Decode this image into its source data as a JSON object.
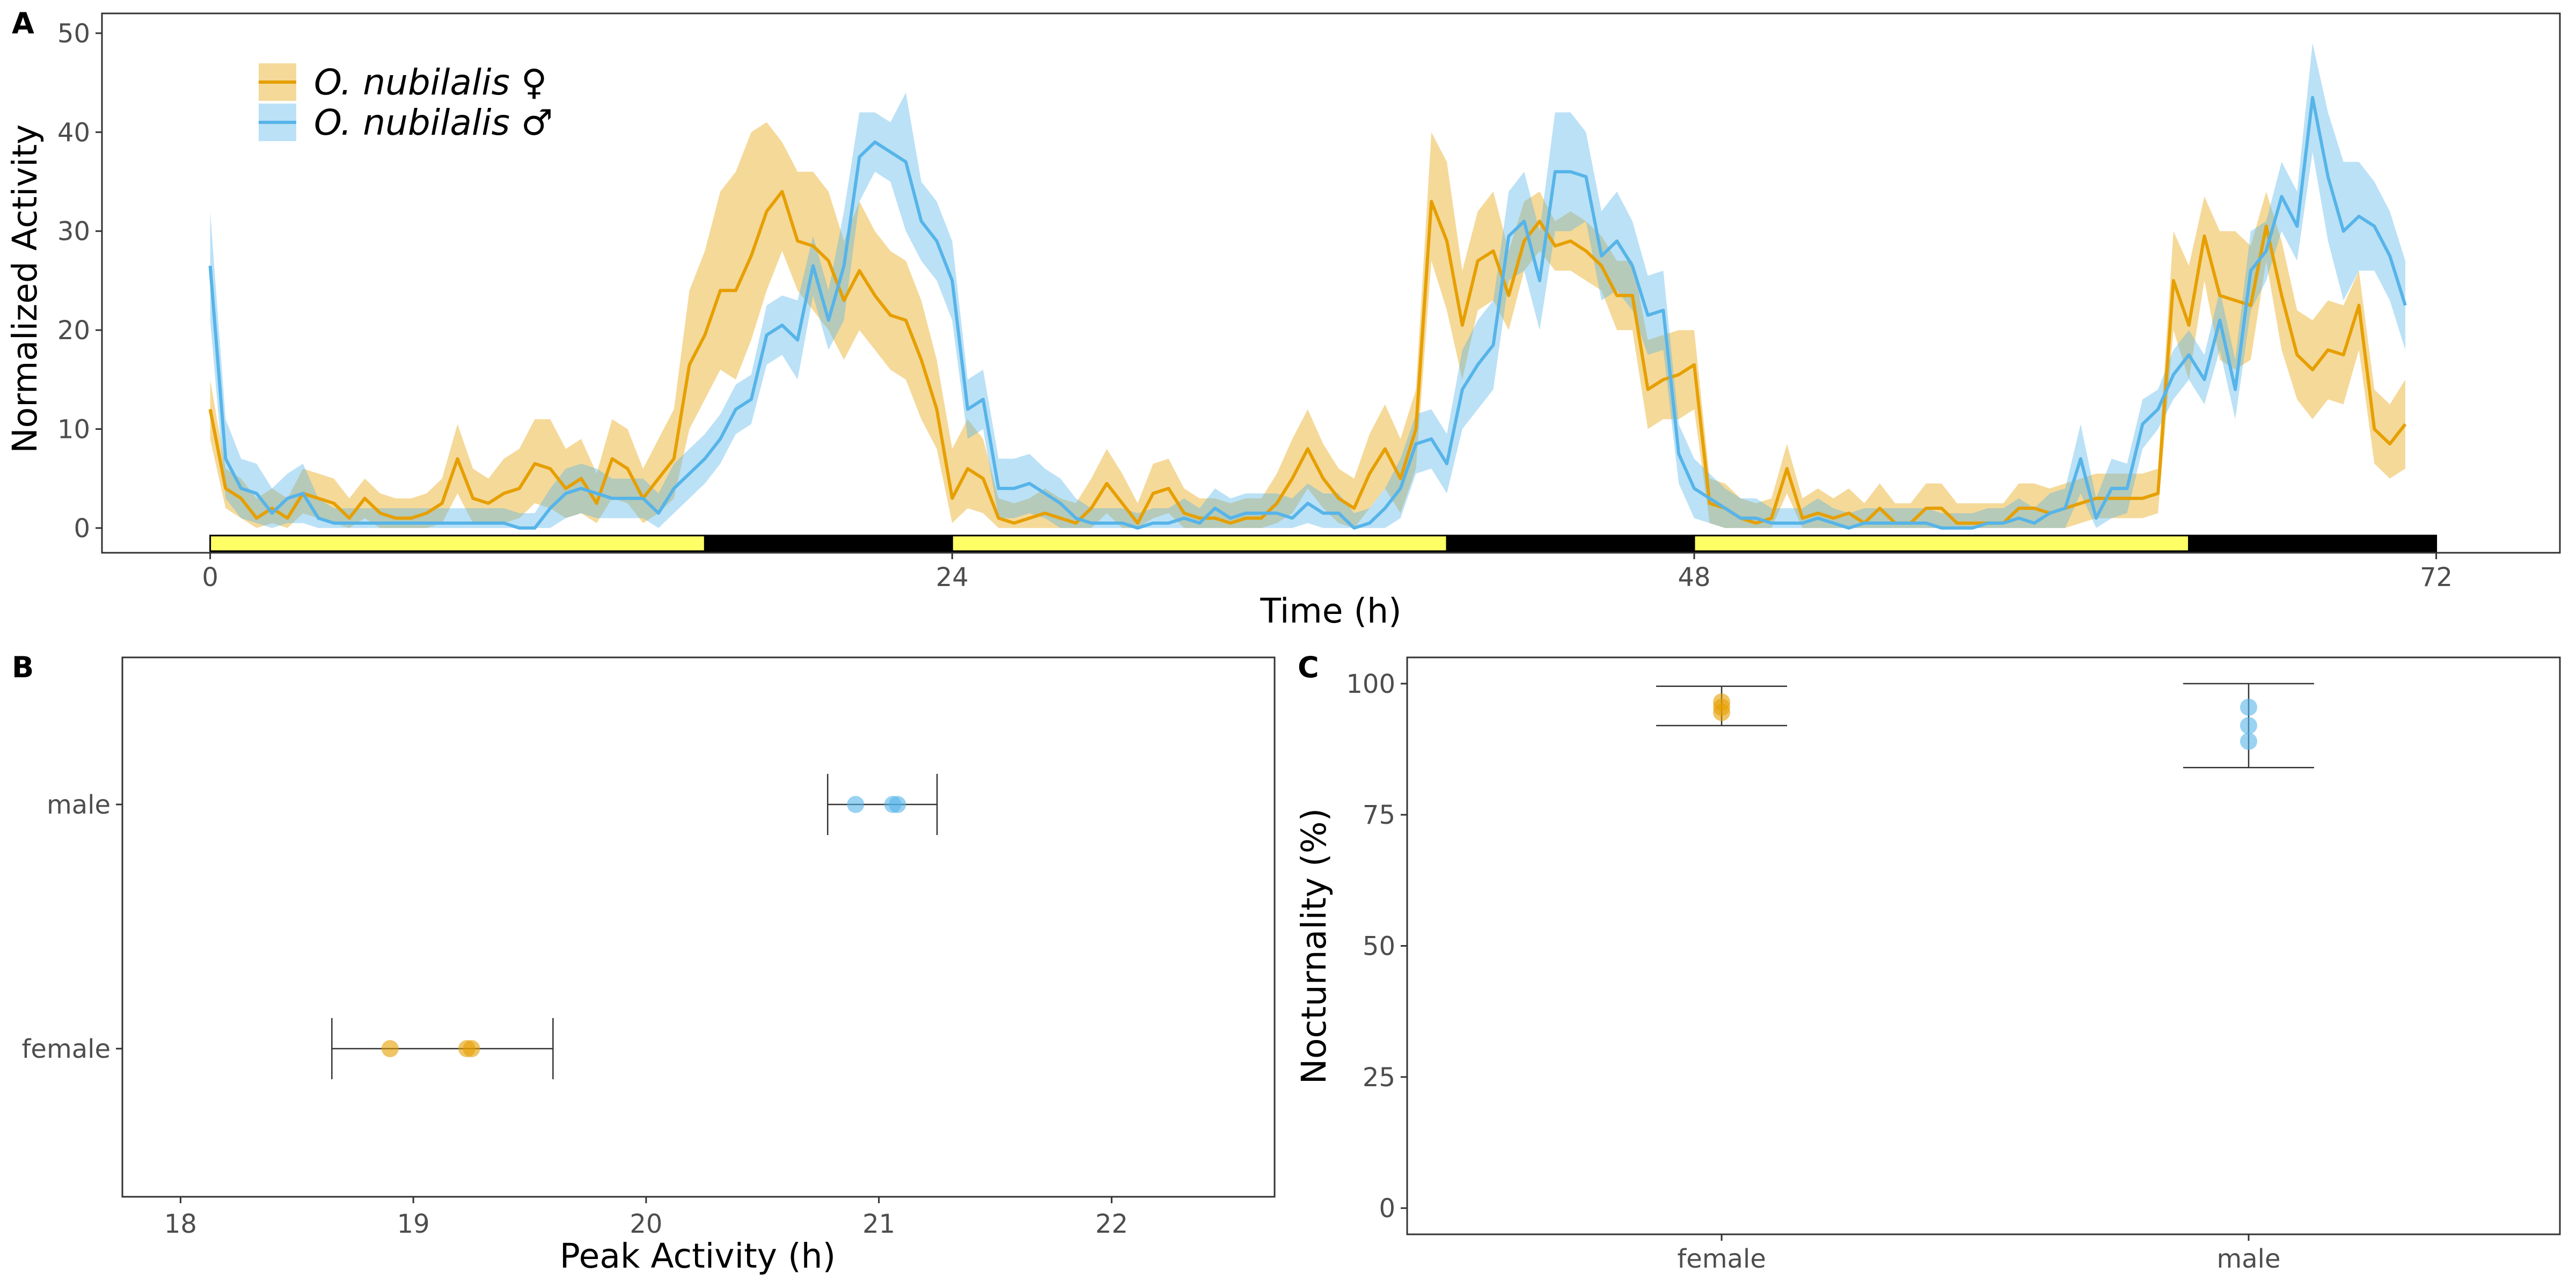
{
  "panels": {
    "a": {
      "letter": "A"
    },
    "b": {
      "letter": "B"
    },
    "c": {
      "letter": "C"
    }
  },
  "colors": {
    "female": "#E69F00",
    "male": "#56B4E9",
    "light_phase": "#FFFF66",
    "dark_phase": "#000000"
  },
  "chart_data": [
    {
      "type": "line",
      "panel": "A",
      "xlabel": "Time (h)",
      "ylabel": "Normalized Activity",
      "xlim": [
        -3.5,
        76
      ],
      "ylim": [
        -2.5,
        52
      ],
      "xticks": [
        0,
        24,
        48,
        72
      ],
      "yticks": [
        0,
        10,
        20,
        30,
        40,
        50
      ],
      "legend_position": "top-left",
      "x_step": 0.5,
      "x_start": 0,
      "series": [
        {
          "name": "O. nubilalis ♀",
          "key": "female",
          "values": [
            12,
            4,
            3,
            1,
            2,
            1,
            3.5,
            3,
            2.5,
            1,
            3,
            1.5,
            1,
            1,
            1.5,
            2.5,
            7,
            3,
            2.5,
            3.5,
            4,
            6.5,
            6,
            4,
            5,
            2.5,
            7,
            6,
            3,
            5,
            7,
            16.5,
            19.5,
            24,
            24,
            27.5,
            32,
            34,
            29,
            28.5,
            27,
            23,
            26,
            23.5,
            21.5,
            21,
            17,
            12,
            3,
            6,
            5,
            1,
            0.5,
            1,
            1.5,
            1,
            0.5,
            2,
            4.5,
            2.5,
            0.5,
            3.5,
            4,
            1.5,
            1,
            1,
            0.5,
            1,
            1,
            2.5,
            5,
            8,
            5,
            3,
            2,
            5.5,
            8,
            5,
            10,
            33,
            29,
            20.5,
            27,
            28,
            23.5,
            29,
            31,
            28.5,
            29,
            28,
            26.5,
            23.5,
            23.5,
            14,
            15,
            15.5,
            16.5,
            2.5,
            2,
            1,
            0.5,
            1,
            6,
            1,
            1.5,
            1,
            1.5,
            0.5,
            2,
            0.5,
            0.5,
            2,
            2,
            0.5,
            0.5,
            0.5,
            0.5,
            2,
            2,
            1.5,
            2,
            2.5,
            3,
            3,
            3,
            3,
            3.5,
            25,
            20.5,
            29.5,
            23.5,
            23,
            22.5,
            30.5,
            23.5,
            17.5,
            16,
            18,
            17.5,
            22.5,
            10,
            8.5,
            10.5
          ],
          "upper": [
            15,
            6,
            5,
            3,
            4,
            3,
            6,
            5.5,
            5,
            3,
            5,
            3.5,
            3,
            3,
            3.5,
            5,
            10.5,
            6,
            5,
            7,
            8,
            11,
            11,
            8,
            9,
            5.5,
            11,
            10,
            6,
            9,
            12,
            24,
            28,
            34,
            36,
            40,
            41,
            39,
            36,
            36,
            34,
            29,
            33,
            30,
            28,
            27,
            23,
            17,
            8,
            11,
            9,
            3,
            2.5,
            3,
            4,
            3,
            2.5,
            5,
            8,
            5.5,
            2.5,
            6.5,
            7,
            4,
            3,
            3,
            2.5,
            3,
            3,
            5.5,
            9,
            12,
            8.5,
            6,
            5,
            9.5,
            12.5,
            9,
            14,
            40,
            37,
            26,
            32,
            34,
            28,
            33,
            34,
            31,
            32,
            31,
            29.5,
            27,
            27,
            19,
            19.5,
            20,
            20,
            5,
            4.5,
            3,
            2.5,
            3,
            8.5,
            3,
            4,
            3,
            4,
            2.5,
            4.5,
            2.5,
            2.5,
            4.5,
            4.5,
            2.5,
            2.5,
            2.5,
            2.5,
            4.5,
            4.5,
            4,
            4.5,
            5,
            5.5,
            5.5,
            5.5,
            5.5,
            6,
            30,
            26.5,
            33.5,
            30,
            30,
            28.5,
            34,
            29,
            22,
            21,
            23,
            22.5,
            26,
            14,
            12.5,
            15
          ],
          "lower": [
            9,
            2,
            1,
            0,
            0.5,
            0,
            1.5,
            1,
            0.5,
            0,
            1,
            0,
            0,
            0,
            0,
            0.5,
            3.5,
            0.5,
            0.5,
            0.5,
            1,
            2.5,
            2,
            1,
            1.5,
            0.5,
            3,
            2.5,
            0.5,
            1.5,
            3,
            10,
            13,
            16,
            15,
            19,
            24,
            28,
            24,
            22,
            20,
            17,
            20,
            18,
            16,
            15,
            11,
            8,
            0.5,
            2,
            1.5,
            0,
            0,
            0,
            0,
            0,
            0,
            0,
            1.5,
            0,
            0,
            1,
            1.5,
            0,
            0,
            0,
            0,
            0,
            0,
            0.5,
            1.5,
            4,
            2,
            0.5,
            0,
            2,
            4,
            1.5,
            6,
            27,
            22,
            15,
            22,
            23,
            20,
            26,
            28,
            26,
            26,
            25,
            24,
            20,
            20,
            10,
            11,
            11,
            12,
            0.5,
            0,
            0,
            0,
            0,
            3.5,
            0,
            0,
            0,
            0,
            0,
            0,
            0,
            0,
            0,
            0,
            0,
            0,
            0,
            0,
            0,
            0,
            0,
            0,
            0.5,
            1,
            1,
            1,
            1,
            1.5,
            20,
            15,
            25,
            17,
            16,
            17,
            27,
            18,
            13,
            11,
            13,
            12.5,
            18,
            6.5,
            5,
            6
          ]
        },
        {
          "name": "O. nubilalis ♂",
          "key": "male",
          "values": [
            26.5,
            7,
            4,
            3.5,
            1.5,
            3,
            3.5,
            1,
            0.5,
            0.5,
            0.5,
            0.5,
            0.5,
            0.5,
            0.5,
            0.5,
            0.5,
            0.5,
            0.5,
            0.5,
            0,
            0,
            2,
            3.5,
            4,
            3.5,
            3,
            3,
            3,
            1.5,
            4,
            5.5,
            7,
            9,
            12,
            13,
            19.5,
            20.5,
            19,
            26.5,
            21,
            26.5,
            37.5,
            39,
            38,
            37,
            31,
            29,
            25,
            12,
            13,
            4,
            4,
            4.5,
            3.5,
            2.5,
            1,
            0.5,
            0.5,
            0.5,
            0,
            0.5,
            0.5,
            1,
            0.5,
            2,
            1,
            1.5,
            1.5,
            1.5,
            1,
            2.5,
            1.5,
            1.5,
            0,
            0.5,
            2,
            4,
            8.5,
            9,
            6.5,
            14,
            16.5,
            18.5,
            29.5,
            31,
            25,
            36,
            36,
            35.5,
            27.5,
            29,
            26.5,
            21.5,
            22,
            7.5,
            4,
            3,
            2,
            1,
            1,
            0.5,
            0.5,
            0.5,
            1,
            0.5,
            0,
            0.5,
            0.5,
            0.5,
            0.5,
            0.5,
            0,
            0,
            0,
            0.5,
            0.5,
            1,
            0.5,
            1.5,
            2,
            7,
            1,
            4,
            4,
            10.5,
            12,
            15.5,
            17.5,
            15,
            21,
            14,
            26,
            28,
            33.5,
            30.5,
            43.5,
            35.5,
            30,
            31.5,
            30.5,
            27.5,
            22.5
          ],
          "upper": [
            32,
            11,
            7,
            6.5,
            4,
            5.5,
            6.5,
            3,
            2,
            2,
            2,
            2,
            2,
            2,
            2,
            2,
            2,
            2,
            2,
            2,
            1.5,
            1.5,
            4,
            6,
            6.5,
            6,
            5,
            5,
            5,
            3.5,
            6.5,
            8,
            9.5,
            11.5,
            14.5,
            15.5,
            22.5,
            23.5,
            23,
            29.5,
            24,
            32,
            42,
            42,
            41,
            44,
            35,
            33,
            29,
            15,
            16,
            7,
            7,
            7.5,
            6,
            5,
            3,
            2,
            2,
            2,
            1.5,
            2,
            2,
            3,
            2,
            4,
            3,
            3.5,
            3.5,
            3.5,
            3,
            4.5,
            3.5,
            3.5,
            1.5,
            2,
            4,
            7,
            11.5,
            12,
            9.5,
            18,
            21,
            23,
            34,
            36,
            30,
            42,
            42,
            40,
            32,
            34,
            31,
            25.5,
            26,
            10.5,
            7,
            5.5,
            4,
            3,
            3,
            2,
            2,
            2,
            3,
            2,
            1.5,
            2,
            2,
            2,
            2,
            2,
            1.5,
            1.5,
            1.5,
            2,
            2,
            3,
            2,
            3.5,
            4,
            10.5,
            3,
            7,
            6.5,
            13,
            14,
            18,
            20,
            17.5,
            24,
            17,
            30,
            31,
            37,
            34,
            49,
            42,
            37,
            37,
            35,
            32,
            27
          ],
          "lower": [
            21,
            3,
            1,
            0.5,
            0,
            0.5,
            0.5,
            0,
            0,
            0,
            0,
            0,
            0,
            0,
            0,
            0,
            0,
            0,
            0,
            0,
            0,
            0,
            0,
            1,
            1.5,
            1,
            1,
            1,
            1,
            0,
            1.5,
            3,
            4.5,
            6.5,
            9.5,
            10.5,
            16.5,
            17.5,
            15,
            23.5,
            18,
            21,
            33,
            36,
            35,
            30,
            27,
            25,
            21,
            9,
            10,
            1,
            1,
            1.5,
            1,
            0,
            0,
            0,
            0,
            0,
            0,
            0,
            0,
            0,
            0,
            0,
            0,
            0,
            0,
            0,
            0,
            0.5,
            0,
            0,
            0,
            0,
            0,
            1,
            5.5,
            6,
            3.5,
            10,
            12,
            14,
            25,
            26,
            20,
            30,
            30,
            31,
            23,
            24,
            22,
            17.5,
            18,
            4.5,
            1,
            0.5,
            0,
            0,
            0,
            0,
            0,
            0,
            0,
            0,
            0,
            0,
            0,
            0,
            0,
            0,
            0,
            0,
            0,
            0,
            0,
            0,
            0,
            0,
            0,
            3.5,
            0,
            1,
            1.5,
            8,
            10,
            13,
            15,
            12.5,
            18,
            11,
            22,
            25,
            30,
            27,
            38,
            29,
            23,
            26,
            26,
            23,
            18
          ]
        }
      ],
      "photoperiod": [
        {
          "phase": "light",
          "start": 0,
          "end": 16
        },
        {
          "phase": "dark",
          "start": 16,
          "end": 24
        },
        {
          "phase": "light",
          "start": 24,
          "end": 40
        },
        {
          "phase": "dark",
          "start": 40,
          "end": 48
        },
        {
          "phase": "light",
          "start": 48,
          "end": 64
        },
        {
          "phase": "dark",
          "start": 64,
          "end": 72
        }
      ]
    },
    {
      "type": "scatter",
      "panel": "B",
      "xlabel": "Peak Activity (h)",
      "ylabel": "",
      "xlim": [
        17.75,
        22.7
      ],
      "xticks": [
        18,
        19,
        20,
        21,
        22
      ],
      "categories": [
        "female",
        "male"
      ],
      "series": [
        {
          "key": "female",
          "category": "female",
          "points": [
            18.9,
            19.23,
            19.25
          ],
          "error_low": 18.65,
          "error_high": 19.6
        },
        {
          "key": "male",
          "category": "male",
          "points": [
            20.9,
            21.06,
            21.08
          ],
          "error_low": 20.78,
          "error_high": 21.25
        }
      ]
    },
    {
      "type": "scatter",
      "panel": "C",
      "xlabel": "",
      "ylabel": "Nocturnality (%)",
      "ylim": [
        -5,
        105
      ],
      "yticks": [
        0,
        25,
        50,
        75,
        100
      ],
      "categories": [
        "female",
        "male"
      ],
      "series": [
        {
          "key": "female",
          "category": "female",
          "points": [
            94.5,
            95.5,
            96.5
          ],
          "error_low": 92,
          "error_high": 99.5
        },
        {
          "key": "male",
          "category": "male",
          "points": [
            89,
            92,
            95.5
          ],
          "error_low": 84,
          "error_high": 100
        }
      ]
    }
  ]
}
